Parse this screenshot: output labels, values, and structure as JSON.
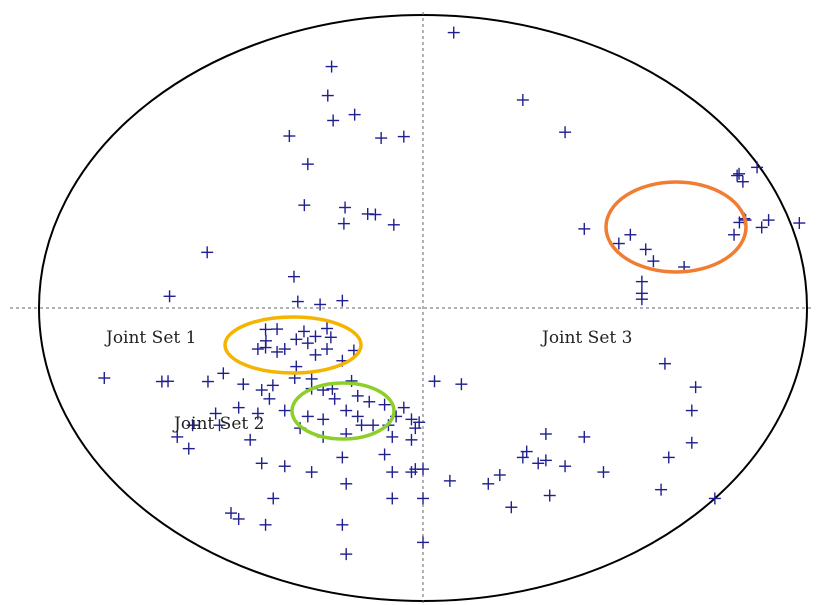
{
  "chart_data": {
    "type": "scatter",
    "title": "",
    "colors": {
      "points": "#1f1f8f",
      "outline": "#000000",
      "axes": "#555555",
      "joint_set_1": "#f5b400",
      "joint_set_2": "#8ccf28",
      "joint_set_3": "#f07d32"
    },
    "xlim": [
      -1,
      1
    ],
    "ylim": [
      -1,
      1
    ],
    "points": [
      [
        -0.238,
        0.824
      ],
      [
        -0.248,
        0.725
      ],
      [
        -0.234,
        0.64
      ],
      [
        -0.178,
        0.66
      ],
      [
        -0.348,
        0.587
      ],
      [
        -0.109,
        0.58
      ],
      [
        -0.05,
        0.585
      ],
      [
        -0.3,
        0.491
      ],
      [
        -0.309,
        0.351
      ],
      [
        -0.203,
        0.343
      ],
      [
        -0.144,
        0.321
      ],
      [
        -0.124,
        0.319
      ],
      [
        -0.206,
        0.288
      ],
      [
        -0.076,
        0.284
      ],
      [
        -0.562,
        0.19
      ],
      [
        -0.336,
        0.107
      ],
      [
        -0.66,
        0.04
      ],
      [
        -0.326,
        0.022
      ],
      [
        -0.268,
        0.012
      ],
      [
        -0.21,
        0.025
      ],
      [
        -0.41,
        -0.073
      ],
      [
        -0.38,
        -0.072
      ],
      [
        -0.409,
        -0.112
      ],
      [
        -0.33,
        -0.107
      ],
      [
        -0.3,
        -0.12
      ],
      [
        -0.28,
        -0.097
      ],
      [
        -0.25,
        -0.07
      ],
      [
        -0.24,
        -0.1
      ],
      [
        -0.31,
        -0.08
      ],
      [
        -0.38,
        -0.15
      ],
      [
        -0.41,
        -0.135
      ],
      [
        -0.36,
        -0.14
      ],
      [
        -0.25,
        -0.14
      ],
      [
        -0.21,
        -0.18
      ],
      [
        -0.18,
        -0.145
      ],
      [
        -0.28,
        -0.16
      ],
      [
        -0.33,
        -0.2
      ],
      [
        -0.43,
        -0.14
      ],
      [
        -0.83,
        -0.239
      ],
      [
        -0.664,
        -0.25
      ],
      [
        -0.68,
        -0.251
      ],
      [
        -0.56,
        -0.251
      ],
      [
        -0.52,
        -0.223
      ],
      [
        -0.468,
        -0.26
      ],
      [
        -0.391,
        -0.264
      ],
      [
        -0.334,
        -0.239
      ],
      [
        -0.29,
        -0.242
      ],
      [
        -0.236,
        -0.276
      ],
      [
        -0.186,
        -0.249
      ],
      [
        -0.26,
        -0.28
      ],
      [
        -0.29,
        -0.275
      ],
      [
        -0.42,
        -0.28
      ],
      [
        -0.48,
        -0.34
      ],
      [
        -0.4,
        -0.31
      ],
      [
        -0.54,
        -0.36
      ],
      [
        -0.43,
        -0.36
      ],
      [
        -0.36,
        -0.35
      ],
      [
        -0.3,
        -0.37
      ],
      [
        -0.17,
        -0.3
      ],
      [
        -0.14,
        -0.32
      ],
      [
        -0.1,
        -0.33
      ],
      [
        -0.17,
        -0.37
      ],
      [
        -0.2,
        -0.35
      ],
      [
        -0.23,
        -0.31
      ],
      [
        -0.26,
        -0.38
      ],
      [
        -0.16,
        -0.4
      ],
      [
        -0.13,
        -0.4
      ],
      [
        -0.09,
        -0.4
      ],
      [
        -0.07,
        -0.37
      ],
      [
        -0.03,
        -0.38
      ],
      [
        -0.01,
        -0.39
      ],
      [
        -0.02,
        -0.41
      ],
      [
        -0.08,
        -0.44
      ],
      [
        -0.03,
        -0.45
      ],
      [
        -0.05,
        -0.34
      ],
      [
        -0.2,
        -0.43
      ],
      [
        -0.26,
        -0.44
      ],
      [
        -0.32,
        -0.41
      ],
      [
        -0.53,
        -0.4
      ],
      [
        -0.6,
        -0.4
      ],
      [
        -0.64,
        -0.44
      ],
      [
        -0.61,
        -0.48
      ],
      [
        -0.45,
        -0.45
      ],
      [
        -0.42,
        -0.53
      ],
      [
        -0.36,
        -0.54
      ],
      [
        -0.29,
        -0.56
      ],
      [
        -0.21,
        -0.51
      ],
      [
        -0.1,
        -0.5
      ],
      [
        -0.08,
        -0.56
      ],
      [
        -0.02,
        -0.55
      ],
      [
        0.0,
        -0.55
      ],
      [
        -0.2,
        -0.6
      ],
      [
        -0.39,
        -0.65
      ],
      [
        -0.48,
        -0.72
      ],
      [
        -0.5,
        -0.7
      ],
      [
        -0.41,
        -0.74
      ],
      [
        -0.21,
        -0.74
      ],
      [
        -0.08,
        -0.65
      ],
      [
        0.0,
        -0.65
      ],
      [
        -0.2,
        -0.84
      ],
      [
        0.0,
        -0.8
      ],
      [
        -0.03,
        -0.56
      ],
      [
        0.07,
        -0.59
      ],
      [
        0.1,
        -0.26
      ],
      [
        0.03,
        -0.25
      ],
      [
        0.17,
        -0.6
      ],
      [
        0.2,
        -0.57
      ],
      [
        0.23,
        -0.68
      ],
      [
        0.3,
        -0.53
      ],
      [
        0.32,
        -0.52
      ],
      [
        0.33,
        -0.64
      ],
      [
        0.32,
        -0.43
      ],
      [
        0.27,
        -0.49
      ],
      [
        0.26,
        -0.51
      ],
      [
        0.37,
        -0.54
      ],
      [
        0.42,
        -0.44
      ],
      [
        0.47,
        -0.56
      ],
      [
        0.62,
        -0.62
      ],
      [
        0.08,
        0.94
      ],
      [
        0.26,
        0.71
      ],
      [
        0.37,
        0.6
      ],
      [
        0.42,
        0.27
      ],
      [
        0.54,
        0.25
      ],
      [
        0.51,
        0.22
      ],
      [
        0.58,
        0.2
      ],
      [
        0.6,
        0.16
      ],
      [
        0.57,
        0.09
      ],
      [
        0.57,
        0.05
      ],
      [
        0.57,
        0.03
      ],
      [
        0.68,
        0.14
      ],
      [
        0.81,
        0.25
      ],
      [
        0.84,
        0.3
      ],
      [
        0.63,
        -0.19
      ],
      [
        0.71,
        -0.27
      ],
      [
        0.7,
        -0.35
      ],
      [
        0.64,
        -0.51
      ],
      [
        0.7,
        -0.46
      ],
      [
        0.76,
        -0.65
      ],
      [
        0.818,
        0.452
      ],
      [
        0.823,
        0.458
      ],
      [
        0.833,
        0.431
      ],
      [
        0.824,
        0.292
      ],
      [
        0.837,
        0.305
      ],
      [
        0.882,
        0.275
      ],
      [
        0.9,
        0.3
      ],
      [
        0.98,
        0.29
      ],
      [
        0.87,
        0.48
      ]
    ],
    "annotations": [
      {
        "text": "Joint Set 1"
      },
      {
        "text": "Joint Set 2"
      },
      {
        "text": "Joint Set 3"
      }
    ]
  }
}
